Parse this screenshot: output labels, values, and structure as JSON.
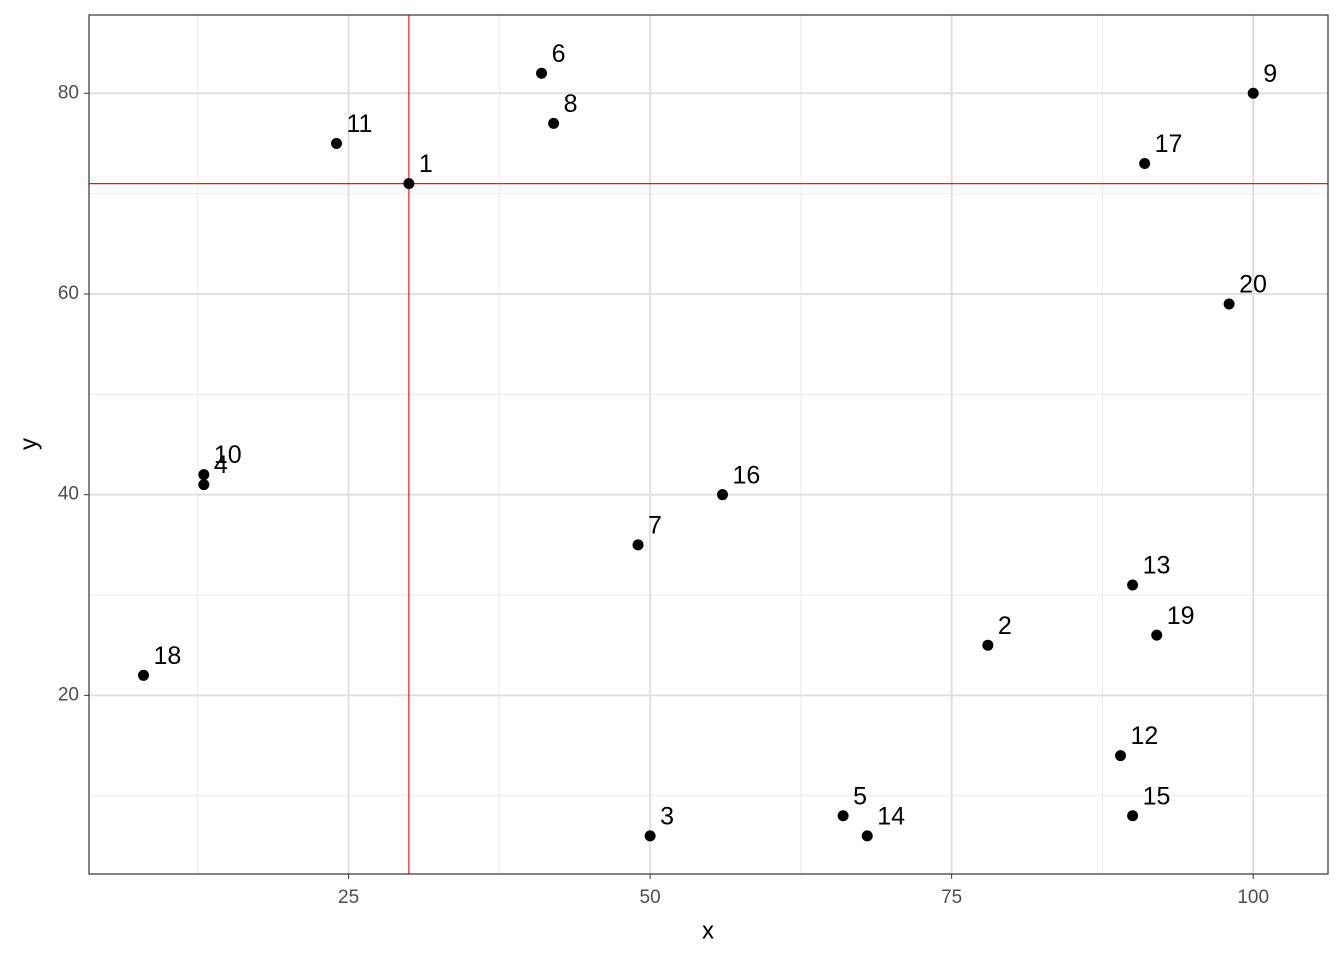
{
  "chart_data": {
    "type": "scatter",
    "x_label": "x",
    "y_label": "y",
    "x": [
      30,
      78,
      50,
      13,
      66,
      41,
      49,
      42,
      100,
      13,
      24,
      89,
      90,
      68,
      90,
      56,
      91,
      8,
      92,
      98
    ],
    "series": [
      {
        "color": "#000000",
        "values": [
          71,
          25,
          6,
          41,
          8,
          82,
          35,
          77,
          80,
          42,
          75,
          14,
          31,
          6,
          8,
          40,
          73,
          22,
          26,
          59
        ]
      }
    ],
    "point_labels": [
      "1",
      "2",
      "3",
      "4",
      "5",
      "6",
      "7",
      "8",
      "9",
      "10",
      "11",
      "12",
      "13",
      "14",
      "15",
      "16",
      "17",
      "18",
      "19",
      "20"
    ],
    "xlim": [
      3.48,
      106.2
    ],
    "ylim": [
      2.2,
      87.8
    ],
    "xticks": [
      25,
      50,
      75,
      100
    ],
    "yticks": [
      20,
      40,
      60,
      80
    ],
    "xminor": [
      12.5,
      37.5,
      62.5,
      87.5
    ],
    "yminor": [
      10,
      30,
      50,
      70
    ],
    "grid": true,
    "reference_lines": {
      "x": 30,
      "y": 71,
      "color": "#e41a1c"
    }
  }
}
